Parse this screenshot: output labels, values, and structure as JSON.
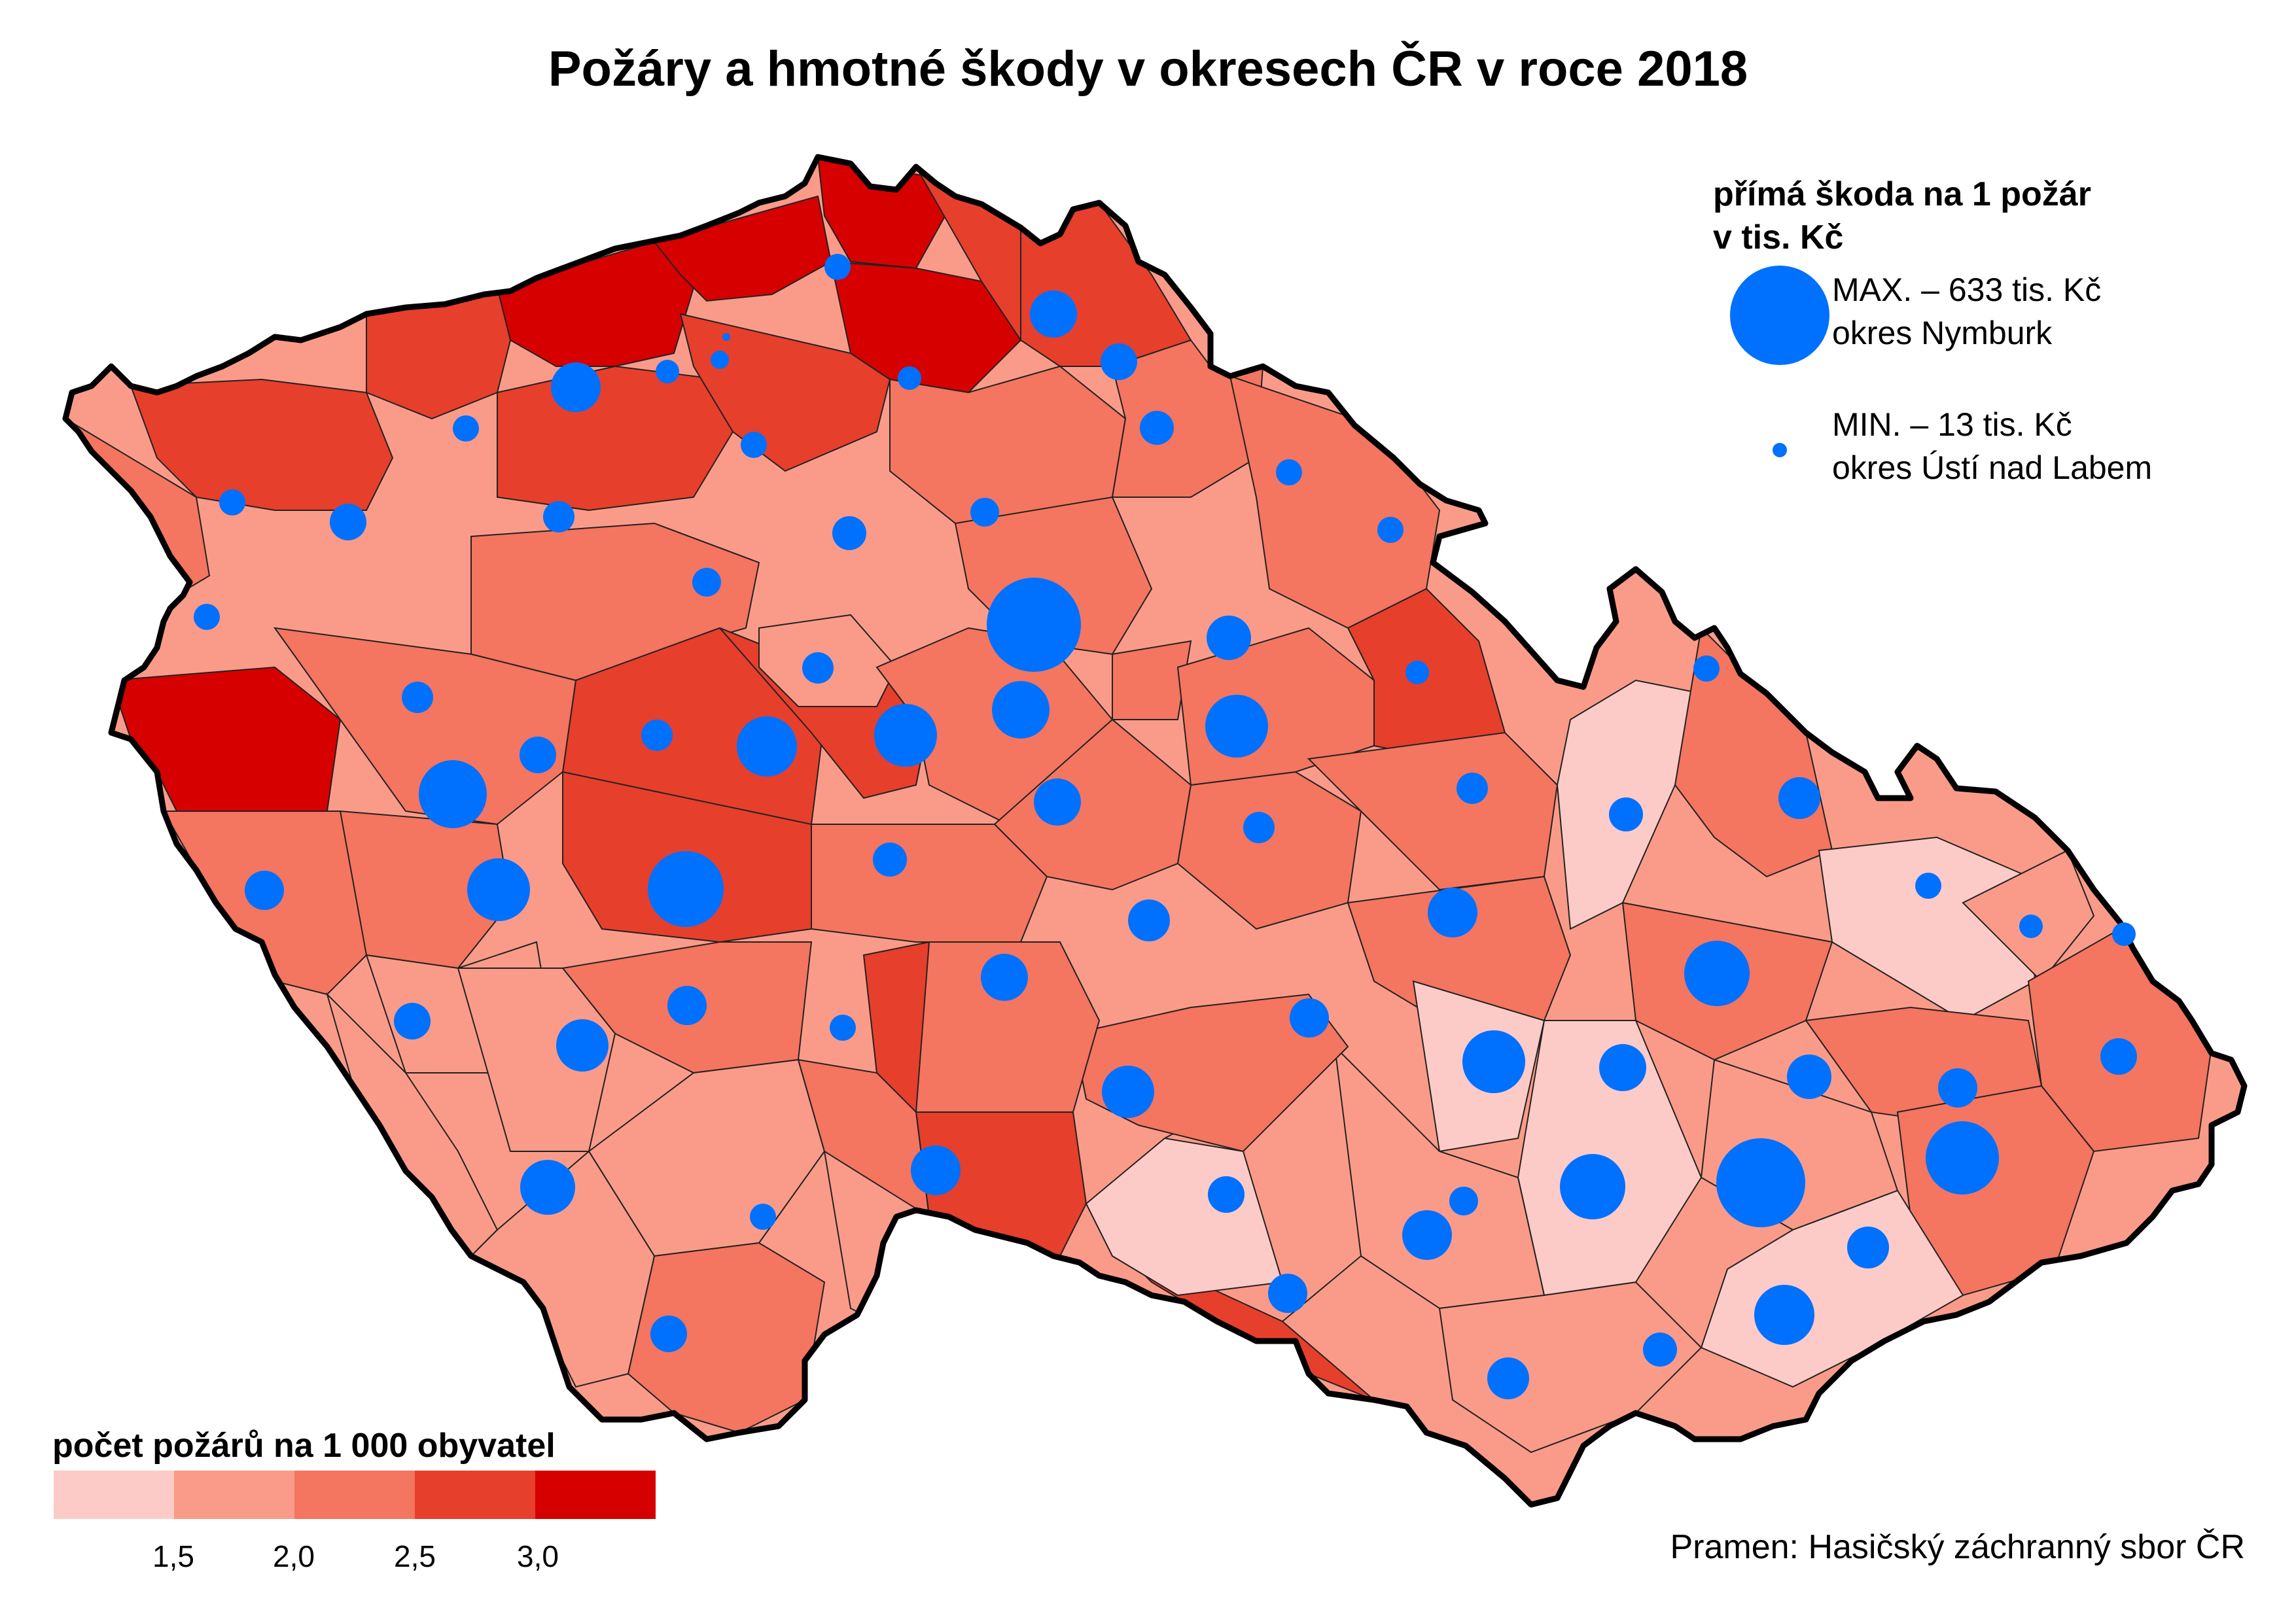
{
  "title": "Požáry a hmotné škody v okresech ČR v roce 2018",
  "size_legend": {
    "title_line1": "přímá škoda na 1 požár",
    "title_line2": "v tis. Kč",
    "max_line1": "MAX. – 633 tis. Kč",
    "max_line2": "okres Nymburk",
    "min_line1": "MIN. – 13 tis. Kč",
    "min_line2": "okres Ústí nad Labem",
    "max_value": 633,
    "min_value": 13
  },
  "choropleth_legend": {
    "title": "počet požárů na 1 000 obyvatel",
    "classes": [
      "#fdcbc7",
      "#fa9b89",
      "#f47560",
      "#e63f2c",
      "#d60000"
    ],
    "ticks": [
      "1,5",
      "2,0",
      "2,5",
      "3,0"
    ]
  },
  "symbol_color": "#0070ff",
  "source": "Pramen: Hasičský záchranný sbor ČR"
}
